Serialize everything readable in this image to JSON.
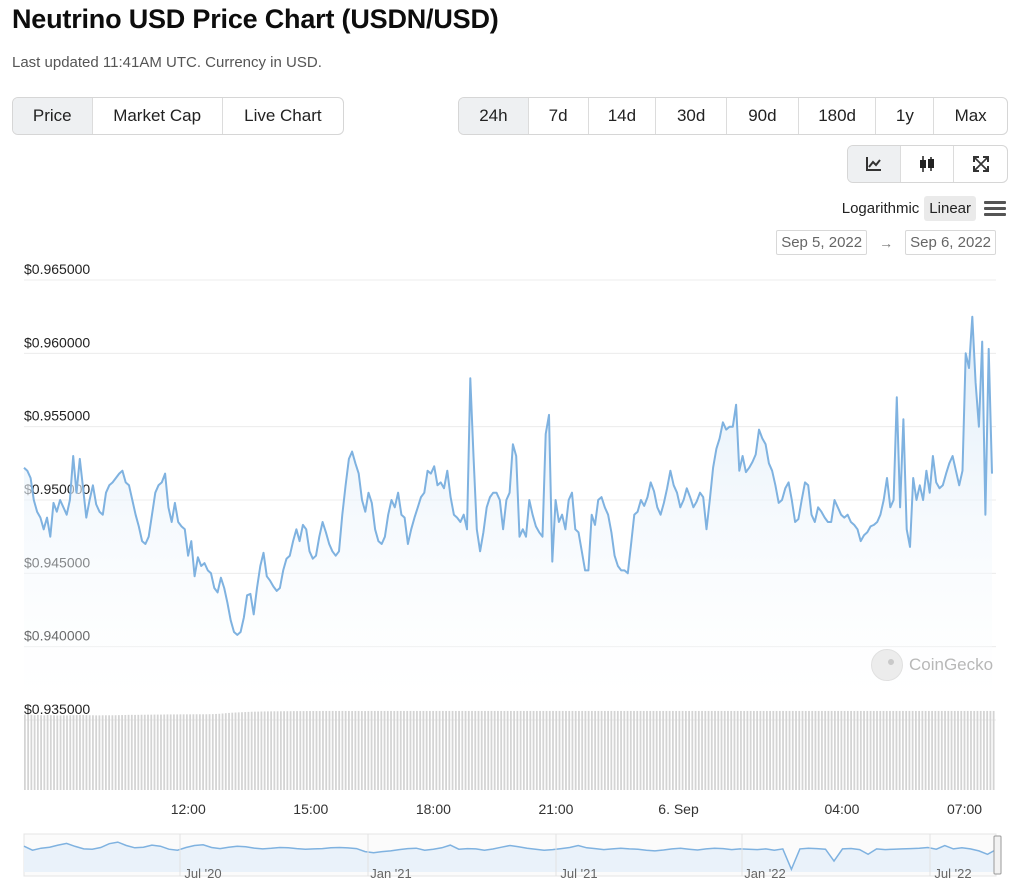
{
  "page": {
    "title": "Neutrino USD Price Chart (USDN/USD)",
    "subtitle": "Last updated 11:41AM UTC. Currency in USD."
  },
  "chart_type_tabs": [
    "Price",
    "Market Cap",
    "Live Chart"
  ],
  "active_chart_type": "Price",
  "range_tabs": [
    "24h",
    "7d",
    "14d",
    "30d",
    "90d",
    "180d",
    "1y",
    "Max"
  ],
  "active_range": "24h",
  "view_icons": [
    "line-chart-icon",
    "candlestick-icon",
    "expand-icon"
  ],
  "scale": {
    "log_label": "Logarithmic",
    "linear_label": "Linear",
    "active": "Linear"
  },
  "date_range": {
    "from": "Sep 5, 2022",
    "arrow": "→",
    "to": "Sep 6, 2022"
  },
  "watermark": "CoinGecko",
  "colors": {
    "line": "#7fb2e0",
    "area_top": "#dcebf8",
    "volume": "#d4d4d4",
    "grid": "#ececec"
  },
  "chart_data": {
    "type": "area",
    "y_tick_labels": [
      "$0.965000",
      "$0.960000",
      "$0.955000",
      "$0.950000",
      "$0.945000",
      "$0.940000",
      "$0.935000"
    ],
    "ylim": [
      0.935,
      0.965
    ],
    "x_tick_labels": [
      "12:00",
      "15:00",
      "18:00",
      "21:00",
      "6. Sep",
      "04:00",
      "07:00"
    ],
    "x_tick_hours": [
      12,
      15,
      18,
      21,
      24,
      28,
      31
    ],
    "xlim_hours": [
      7.98,
      31.77
    ],
    "grid": true,
    "series": [
      {
        "values": [
          0.9522,
          0.952,
          0.9515,
          0.95,
          0.9492,
          0.9488,
          0.948,
          0.9488,
          0.9475,
          0.9498,
          0.9492,
          0.95,
          0.9495,
          0.949,
          0.95,
          0.953,
          0.9505,
          0.9528,
          0.9508,
          0.9488,
          0.95,
          0.951,
          0.9497,
          0.9492,
          0.949,
          0.9505,
          0.951,
          0.9512,
          0.9515,
          0.9518,
          0.952,
          0.9512,
          0.951,
          0.95,
          0.949,
          0.9482,
          0.9472,
          0.947,
          0.9475,
          0.949,
          0.9505,
          0.951,
          0.9512,
          0.9518,
          0.9495,
          0.9485,
          0.9498,
          0.9485,
          0.9482,
          0.948,
          0.9462,
          0.9472,
          0.9448,
          0.9461,
          0.9455,
          0.9457,
          0.9452,
          0.945,
          0.944,
          0.9437,
          0.9447,
          0.944,
          0.943,
          0.9418,
          0.941,
          0.9408,
          0.941,
          0.942,
          0.9435,
          0.9436,
          0.9422,
          0.944,
          0.9455,
          0.9464,
          0.9448,
          0.9445,
          0.9441,
          0.9438,
          0.944,
          0.9452,
          0.946,
          0.9462,
          0.9472,
          0.948,
          0.9472,
          0.9483,
          0.948,
          0.9465,
          0.946,
          0.9462,
          0.9475,
          0.9485,
          0.9478,
          0.947,
          0.9465,
          0.9462,
          0.9465,
          0.949,
          0.951,
          0.9528,
          0.9533,
          0.9525,
          0.9518,
          0.95,
          0.9492,
          0.9505,
          0.9498,
          0.948,
          0.9472,
          0.947,
          0.9475,
          0.949,
          0.95,
          0.9495,
          0.9505,
          0.949,
          0.9488,
          0.947,
          0.948,
          0.9488,
          0.9495,
          0.9502,
          0.9505,
          0.952,
          0.9518,
          0.9523,
          0.951,
          0.9512,
          0.9508,
          0.952,
          0.9502,
          0.949,
          0.9488,
          0.9485,
          0.949,
          0.948,
          0.9583,
          0.953,
          0.948,
          0.9465,
          0.9478,
          0.9495,
          0.9502,
          0.9505,
          0.9505,
          0.95,
          0.948,
          0.95,
          0.9505,
          0.9538,
          0.953,
          0.9475,
          0.948,
          0.9475,
          0.95,
          0.949,
          0.9482,
          0.9478,
          0.9475,
          0.9545,
          0.9558,
          0.9458,
          0.95,
          0.9485,
          0.949,
          0.948,
          0.95,
          0.9505,
          0.948,
          0.9478,
          0.9465,
          0.9452,
          0.9452,
          0.949,
          0.9483,
          0.95,
          0.9502,
          0.9495,
          0.949,
          0.9478,
          0.9462,
          0.9455,
          0.9452,
          0.9452,
          0.945,
          0.947,
          0.949,
          0.9492,
          0.95,
          0.9496,
          0.9502,
          0.9512,
          0.9506,
          0.9495,
          0.949,
          0.9498,
          0.9508,
          0.952,
          0.951,
          0.9505,
          0.9495,
          0.95,
          0.9508,
          0.9502,
          0.9495,
          0.9499,
          0.9505,
          0.9502,
          0.948,
          0.95,
          0.9522,
          0.9535,
          0.9542,
          0.9553,
          0.9548,
          0.955,
          0.955,
          0.9565,
          0.952,
          0.953,
          0.9519,
          0.9522,
          0.9526,
          0.9531,
          0.9548,
          0.9542,
          0.9538,
          0.9525,
          0.952,
          0.951,
          0.9498,
          0.95,
          0.9508,
          0.9512,
          0.95,
          0.9485,
          0.9487,
          0.95,
          0.9512,
          0.951,
          0.949,
          0.9485,
          0.9495,
          0.9492,
          0.9488,
          0.9485,
          0.9485,
          0.95,
          0.9495,
          0.949,
          0.9488,
          0.949,
          0.9485,
          0.9483,
          0.948,
          0.9472,
          0.9476,
          0.9478,
          0.9482,
          0.9483,
          0.9485,
          0.949,
          0.95,
          0.9515,
          0.9495,
          0.95,
          0.957,
          0.9495,
          0.9555,
          0.948,
          0.9468,
          0.9515,
          0.95,
          0.951,
          0.95,
          0.952,
          0.9505,
          0.953,
          0.9512,
          0.9508,
          0.951,
          0.9518,
          0.9525,
          0.953,
          0.952,
          0.951,
          0.952,
          0.96,
          0.959,
          0.9625,
          0.958,
          0.955,
          0.9608,
          0.949,
          0.9603,
          0.9518
        ]
      }
    ],
    "volume_relative": [
      0.955,
      0.957,
      0.952,
      0.945,
      0.95,
      0.946,
      0.944,
      0.948,
      0.947,
      0.945,
      0.943,
      0.944,
      0.945,
      0.944,
      0.945,
      0.946,
      0.947,
      0.948,
      0.948,
      0.947,
      0.946,
      0.945,
      0.944,
      0.944,
      0.945,
      0.945,
      0.945,
      0.945,
      0.946,
      0.947,
      0.948,
      0.949,
      0.951,
      0.951,
      0.95,
      0.951,
      0.952,
      0.952,
      0.953,
      0.953,
      0.954,
      0.954,
      0.954,
      0.955,
      0.956,
      0.956,
      0.956,
      0.956,
      0.957,
      0.957,
      0.957,
      0.957,
      0.958,
      0.958,
      0.958,
      0.958,
      0.958,
      0.959,
      0.96,
      0.962,
      0.964,
      0.968,
      0.972,
      0.975,
      0.978,
      0.98,
      0.982,
      0.984,
      0.986,
      0.988,
      0.99,
      0.991,
      0.992,
      0.993,
      0.994,
      0.995,
      0.995,
      0.996,
      0.996,
      0.996,
      0.997,
      0.997,
      0.997,
      0.998,
      0.998,
      0.998,
      0.998,
      0.999,
      0.999,
      0.999,
      0.999,
      0.999,
      1.0,
      1.0,
      1.0,
      1.0,
      1.0,
      1.0,
      1.0,
      1.0,
      1.0,
      0.999,
      1.0,
      1.0,
      0.999,
      0.999,
      1.0,
      1.0,
      1.0,
      1.0,
      1.0,
      1.0,
      1.0,
      1.0,
      1.0,
      1.0,
      1.0,
      1.0,
      1.0,
      1.0,
      1.0,
      1.0,
      1.0,
      1.0,
      1.0,
      1.0,
      1.0,
      1.0,
      1.0,
      1.0,
      1.0,
      1.0,
      1.0,
      1.0,
      1.0,
      1.0,
      1.0,
      1.0,
      1.0,
      1.0,
      1.0,
      1.0,
      1.0,
      1.0,
      1.0,
      1.0,
      1.0,
      1.0,
      1.0,
      1.0,
      1.0,
      1.0,
      1.0,
      1.0,
      1.0,
      1.0,
      1.0,
      1.0,
      1.0,
      1.0,
      1.0,
      1.0,
      1.0,
      1.0,
      1.0,
      1.0,
      1.0,
      1.0,
      1.0,
      1.0,
      1.0,
      1.0,
      1.0,
      1.0,
      1.0,
      1.0,
      1.0,
      1.0,
      1.0,
      1.0,
      1.0,
      1.0,
      1.0,
      1.0,
      1.0,
      1.0,
      1.0,
      1.0,
      1.0,
      1.0,
      1.0,
      1.0,
      1.0,
      1.0,
      1.0,
      1.0,
      1.0,
      1.0,
      1.0,
      1.0,
      1.0,
      1.0,
      1.0,
      1.0,
      1.0,
      1.0,
      1.0,
      1.0,
      1.0,
      1.0,
      1.0,
      1.0,
      1.0,
      1.0,
      1.0,
      1.0,
      1.0,
      1.0,
      1.0,
      1.0,
      1.0,
      1.0,
      1.0,
      1.0,
      1.0,
      1.0,
      1.0,
      1.0,
      1.0,
      1.0,
      1.0,
      1.0,
      1.0,
      1.0,
      1.0,
      1.0,
      1.0,
      1.0,
      1.0,
      1.0,
      1.0,
      1.0,
      1.0,
      1.0,
      1.0,
      1.0,
      1.0,
      1.0,
      1.0,
      1.0,
      1.0,
      1.0,
      1.0,
      1.0,
      1.0,
      1.0,
      1.0,
      1.0,
      1.0,
      1.0,
      1.0,
      1.0,
      1.0,
      1.0,
      1.0,
      1.0,
      1.0,
      1.0,
      1.0,
      1.0,
      1.0,
      1.0,
      1.0,
      1.0,
      1.0,
      1.0,
      1.0,
      1.0,
      1.0,
      1.0,
      1.0,
      1.0,
      1.0,
      1.0,
      1.0,
      1.0,
      1.0,
      1.0,
      1.0,
      1.0,
      1.0,
      1.0,
      1.0,
      1.0,
      1.0,
      1.0,
      1.0,
      1.0,
      1.0,
      1.0
    ],
    "navigator": {
      "x_tick_labels": [
        "Jul '20",
        "Jan '21",
        "Jul '21",
        "Jan '22",
        "Jul '22"
      ],
      "values": [
        0.954,
        0.951,
        0.9525,
        0.9532,
        0.9548,
        0.956,
        0.9538,
        0.952,
        0.9518,
        0.953,
        0.9558,
        0.957,
        0.9545,
        0.9528,
        0.9532,
        0.9548,
        0.954,
        0.9518,
        0.951,
        0.953,
        0.9545,
        0.955,
        0.953,
        0.9522,
        0.9532,
        0.954,
        0.9536,
        0.9526,
        0.952,
        0.9524,
        0.953,
        0.9528,
        0.9522,
        0.9518,
        0.952,
        0.9522,
        0.9528,
        0.953,
        0.9527,
        0.9522,
        0.95,
        0.9492,
        0.95,
        0.9505,
        0.9515,
        0.9522,
        0.9525,
        0.951,
        0.9518,
        0.9528,
        0.9548,
        0.9518,
        0.9522,
        0.952,
        0.951,
        0.9519,
        0.9532,
        0.9545,
        0.9535,
        0.9525,
        0.9518,
        0.951,
        0.9515,
        0.9522,
        0.953,
        0.9545,
        0.9528,
        0.9522,
        0.9515,
        0.952,
        0.9525,
        0.952,
        0.9518,
        0.951,
        0.9505,
        0.9512,
        0.952,
        0.9525,
        0.9518,
        0.9512,
        0.952,
        0.9525,
        0.9522,
        0.9515,
        0.952,
        0.9518,
        0.9515,
        0.952,
        0.951,
        0.952,
        0.937,
        0.952,
        0.9525,
        0.9522,
        0.9518,
        0.943,
        0.952,
        0.9523,
        0.9515,
        0.948,
        0.952,
        0.9515,
        0.9518,
        0.952,
        0.9522,
        0.9525,
        0.953,
        0.9518,
        0.9545,
        0.952,
        0.9528,
        0.952,
        0.9505,
        0.948,
        0.9515
      ]
    }
  }
}
